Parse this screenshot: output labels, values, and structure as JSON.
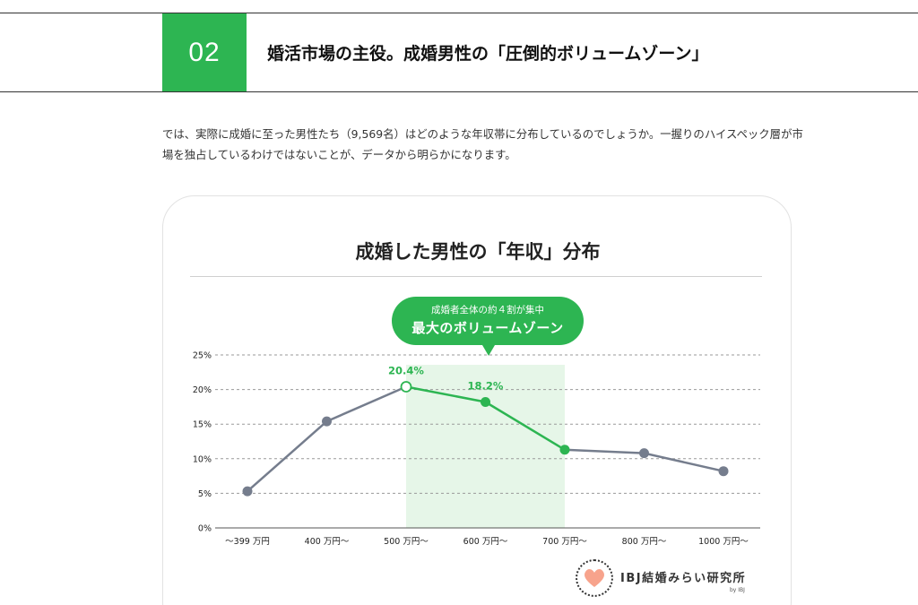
{
  "section": {
    "number": "02",
    "title": "婚活市場の主役。成婚男性の「圧倒的ボリュームゾーン」"
  },
  "intro": {
    "text": "では、実際に成婚に至った男性たち（9,569名）はどのような年収帯に分布しているのでしょうか。一握りのハイスペック層が市場を独占しているわけではないことが、データから明らかになります。"
  },
  "callout": {
    "sub": "成婚者全体の約４割が集中",
    "main": "最大のボリュームゾーン"
  },
  "logo": {
    "text": "IBJ結婚みらい研究所",
    "by": "by IBJ",
    "heart_color": "#f7a38c"
  },
  "colors": {
    "accent": "#2db552",
    "line": "#757d8d",
    "highlight_band": "#e6f6e8"
  },
  "chart_data": {
    "type": "line",
    "title": "成婚した男性の「年収」分布",
    "categories": [
      "〜399 万円",
      "400 万円〜",
      "500 万円〜",
      "600 万円〜",
      "700 万円〜",
      "800 万円〜",
      "1000 万円〜"
    ],
    "values": [
      5.3,
      15.4,
      20.4,
      18.2,
      11.3,
      10.8,
      8.2
    ],
    "data_labels": [
      "",
      "",
      "20.4%",
      "18.2%",
      "",
      "",
      ""
    ],
    "yticks": [
      "0%",
      "5%",
      "10%",
      "15%",
      "20%",
      "25%"
    ],
    "ylim": [
      0,
      25
    ],
    "highlight_range": [
      "500 万円〜",
      "700 万円〜"
    ],
    "grid": true,
    "xlabel": "",
    "ylabel": ""
  }
}
